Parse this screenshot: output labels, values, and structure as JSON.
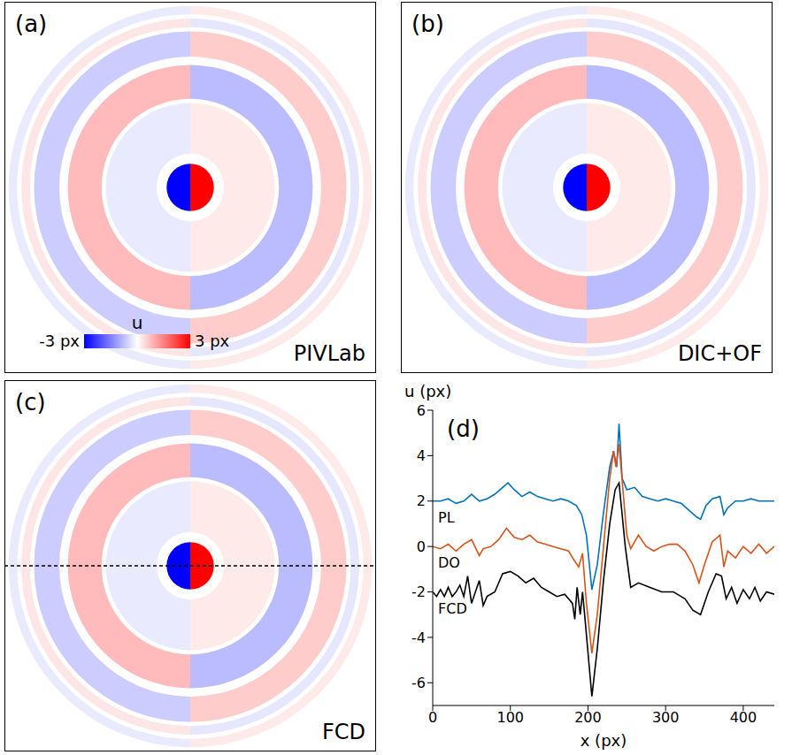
{
  "figure": {
    "panels": [
      {
        "letter": "(a)",
        "method": "PIVLab"
      },
      {
        "letter": "(b)",
        "method": "DIC+OF"
      },
      {
        "letter": "(c)",
        "method": "FCD"
      }
    ],
    "image_size": 440,
    "colorbar": {
      "label": "u",
      "range": [
        -3,
        3
      ],
      "ticks": [
        {
          "value": -3,
          "label": "-3 px"
        },
        {
          "value": 3,
          "label": "3 px"
        }
      ]
    },
    "rings": [
      {
        "inner": 0,
        "outer": 28,
        "u": 3
      },
      {
        "inner": 40,
        "outer": 100,
        "u": 0.25
      },
      {
        "inner": 105,
        "outer": 145,
        "u": -0.8
      },
      {
        "inner": 155,
        "outer": 185,
        "u": 0.6
      },
      {
        "inner": 190,
        "outer": 200,
        "u": -0.3
      },
      {
        "inner": 205,
        "outer": 215,
        "u": 0.25
      }
    ]
  },
  "chart_data": {
    "type": "line",
    "panel_letter": "(d)",
    "x_label": "x (px)",
    "y_label": "u (px)",
    "xlim": [
      0,
      440
    ],
    "xticks": [
      0,
      100,
      200,
      300,
      400
    ],
    "ylim": [
      -7,
      6
    ],
    "yticks": [
      -6,
      -4,
      -2,
      0,
      2,
      4,
      6
    ],
    "series": [
      {
        "name": "PL",
        "color": "#0072bd",
        "x": [
          0,
          10,
          20,
          30,
          40,
          50,
          60,
          70,
          80,
          90,
          97,
          105,
          115,
          125,
          135,
          145,
          155,
          165,
          175,
          185,
          192,
          198,
          205,
          212,
          220,
          228,
          233,
          237,
          240,
          244,
          250,
          260,
          270,
          280,
          290,
          300,
          310,
          320,
          330,
          340,
          345,
          352,
          360,
          370,
          375,
          380,
          390,
          400,
          410,
          420,
          430,
          440
        ],
        "values": [
          2,
          2,
          2.1,
          1.9,
          2,
          2.3,
          2,
          2.1,
          2.3,
          2.6,
          2.8,
          2.5,
          2.2,
          2.4,
          2.2,
          2.1,
          2,
          2.1,
          2,
          1.8,
          1.4,
          0.5,
          -1.9,
          -0.8,
          1.5,
          3.5,
          4.2,
          3.5,
          5.4,
          3,
          2.5,
          2.6,
          2.2,
          2.1,
          2,
          2.1,
          2,
          1.9,
          1.6,
          1.3,
          1.2,
          1.8,
          2.1,
          2.2,
          1.4,
          1.7,
          2,
          2,
          2.1,
          2,
          2,
          2
        ]
      },
      {
        "name": "DO",
        "color": "#d95319",
        "x": [
          0,
          10,
          20,
          30,
          40,
          50,
          60,
          65,
          75,
          85,
          95,
          105,
          115,
          125,
          135,
          145,
          155,
          165,
          175,
          182,
          188,
          193,
          198,
          205,
          212,
          220,
          228,
          233,
          236,
          240,
          245,
          250,
          255,
          265,
          275,
          285,
          295,
          305,
          315,
          325,
          335,
          343,
          350,
          360,
          370,
          375,
          380,
          390,
          400,
          410,
          420,
          430,
          440
        ],
        "values": [
          0,
          -0.1,
          0.1,
          -0.2,
          0.1,
          0.3,
          -0.4,
          -0.1,
          0,
          0.3,
          0.8,
          0.4,
          0.3,
          0.5,
          0.2,
          0.1,
          0,
          -0.1,
          -0.2,
          -0.6,
          -0.9,
          -0.3,
          -2.5,
          -4.7,
          -3,
          0,
          3,
          4.2,
          3.5,
          4.5,
          2.5,
          0.5,
          -0.1,
          0.5,
          0,
          -0.2,
          0,
          0.1,
          0.1,
          -0.2,
          -0.8,
          -1.6,
          -0.8,
          0.2,
          0.5,
          -0.9,
          -0.2,
          -0.5,
          0,
          -0.3,
          0.1,
          -0.3,
          0
        ]
      },
      {
        "name": "FCD",
        "color": "#000000",
        "x": [
          0,
          5,
          10,
          15,
          20,
          25,
          30,
          35,
          40,
          45,
          50,
          55,
          60,
          65,
          70,
          80,
          90,
          100,
          110,
          120,
          130,
          140,
          150,
          160,
          170,
          180,
          183,
          186,
          190,
          193,
          197,
          205,
          212,
          220,
          228,
          235,
          240,
          248,
          255,
          265,
          280,
          295,
          310,
          325,
          335,
          345,
          355,
          365,
          372,
          378,
          385,
          392,
          400,
          408,
          415,
          422,
          430,
          440
        ],
        "values": [
          -2,
          -2.2,
          -1.9,
          -2.2,
          -1.8,
          -2.2,
          -2,
          -1.7,
          -2.2,
          -1.3,
          -2.5,
          -2,
          -1.5,
          -2.6,
          -2.2,
          -2,
          -1.2,
          -1.1,
          -1.3,
          -1.6,
          -1.4,
          -1.8,
          -2,
          -2.2,
          -2.1,
          -2.5,
          -3.2,
          -1.8,
          -3,
          -2,
          -3.5,
          -6.6,
          -4.5,
          -1.5,
          1,
          2.5,
          2.8,
          0,
          -1.8,
          -1.6,
          -1.8,
          -2,
          -2,
          -2.3,
          -2.8,
          -3,
          -2,
          -1.2,
          -1.3,
          -2.3,
          -1.8,
          -2.5,
          -1.9,
          -2.3,
          -1.8,
          -2.4,
          -2,
          -2.1
        ]
      }
    ]
  }
}
